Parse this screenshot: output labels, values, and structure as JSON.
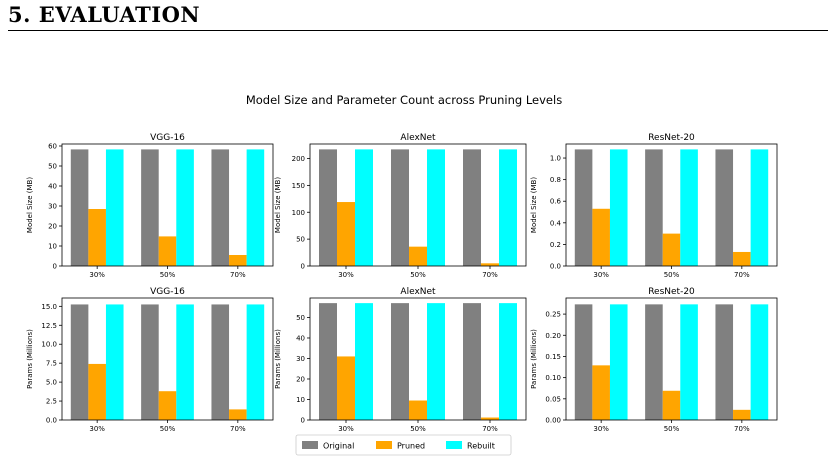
{
  "section_heading": "5. EVALUATION",
  "chart_data": {
    "suptitle": "Model Size and Parameter Count across Pruning Levels",
    "legend": {
      "placement": "bottom-center",
      "entries": [
        {
          "name": "Original",
          "color": "#808080"
        },
        {
          "name": "Pruned",
          "color": "#ffa500"
        },
        {
          "name": "Rebuilt",
          "color": "#00ffff"
        }
      ]
    },
    "panels": [
      {
        "type": "bar",
        "title": "VGG-16",
        "ylabel": "Model Size (MB)",
        "categories": [
          "30%",
          "50%",
          "70%"
        ],
        "ylim": [
          0,
          61
        ],
        "yticks": [
          0,
          10,
          20,
          30,
          40,
          50,
          60
        ],
        "ytick_labels": [
          "0",
          "10",
          "20",
          "30",
          "40",
          "50",
          "60"
        ],
        "series": [
          {
            "name": "Original",
            "values": [
              58.3,
              58.3,
              58.3
            ]
          },
          {
            "name": "Pruned",
            "values": [
              28.5,
              14.8,
              5.5
            ]
          },
          {
            "name": "Rebuilt",
            "values": [
              58.3,
              58.3,
              58.3
            ]
          }
        ]
      },
      {
        "type": "bar",
        "title": "AlexNet",
        "ylabel": "Model Size (MB)",
        "categories": [
          "30%",
          "50%",
          "70%"
        ],
        "ylim": [
          0,
          227
        ],
        "yticks": [
          0,
          50,
          100,
          150,
          200
        ],
        "ytick_labels": [
          "0",
          "50",
          "100",
          "150",
          "200"
        ],
        "series": [
          {
            "name": "Original",
            "values": [
              217,
              217,
              217
            ]
          },
          {
            "name": "Pruned",
            "values": [
              119,
              36,
              5
            ]
          },
          {
            "name": "Rebuilt",
            "values": [
              217,
              217,
              217
            ]
          }
        ]
      },
      {
        "type": "bar",
        "title": "ResNet-20",
        "ylabel": "Model Size (MB)",
        "categories": [
          "30%",
          "50%",
          "70%"
        ],
        "ylim": [
          0,
          1.13
        ],
        "yticks": [
          0,
          0.2,
          0.4,
          0.6,
          0.8,
          1.0
        ],
        "ytick_labels": [
          "0.0",
          "0.2",
          "0.4",
          "0.6",
          "0.8",
          "1.0"
        ],
        "series": [
          {
            "name": "Original",
            "values": [
              1.08,
              1.08,
              1.08
            ]
          },
          {
            "name": "Pruned",
            "values": [
              0.53,
              0.3,
              0.13
            ]
          },
          {
            "name": "Rebuilt",
            "values": [
              1.08,
              1.08,
              1.08
            ]
          }
        ]
      },
      {
        "type": "bar",
        "title": "VGG-16",
        "ylabel": "Params (Millions)",
        "categories": [
          "30%",
          "50%",
          "70%"
        ],
        "ylim": [
          0,
          16.1
        ],
        "yticks": [
          0,
          2.5,
          5.0,
          7.5,
          10.0,
          12.5,
          15.0
        ],
        "ytick_labels": [
          "0.0",
          "2.5",
          "5.0",
          "7.5",
          "10.0",
          "12.5",
          "15.0"
        ],
        "series": [
          {
            "name": "Original",
            "values": [
              15.25,
              15.25,
              15.25
            ]
          },
          {
            "name": "Pruned",
            "values": [
              7.4,
              3.8,
              1.4
            ]
          },
          {
            "name": "Rebuilt",
            "values": [
              15.25,
              15.25,
              15.25
            ]
          }
        ]
      },
      {
        "type": "bar",
        "title": "AlexNet",
        "ylabel": "Params (Millions)",
        "categories": [
          "30%",
          "50%",
          "70%"
        ],
        "ylim": [
          0,
          59.5
        ],
        "yticks": [
          0,
          10,
          20,
          30,
          40,
          50
        ],
        "ytick_labels": [
          "0",
          "10",
          "20",
          "30",
          "40",
          "50"
        ],
        "series": [
          {
            "name": "Original",
            "values": [
              57,
              57,
              57
            ]
          },
          {
            "name": "Pruned",
            "values": [
              31,
              9.5,
              1.2
            ]
          },
          {
            "name": "Rebuilt",
            "values": [
              57,
              57,
              57
            ]
          }
        ]
      },
      {
        "type": "bar",
        "title": "ResNet-20",
        "ylabel": "Params (Millions)",
        "categories": [
          "30%",
          "50%",
          "70%"
        ],
        "ylim": [
          0,
          0.288
        ],
        "yticks": [
          0,
          0.05,
          0.1,
          0.15,
          0.2,
          0.25
        ],
        "ytick_labels": [
          "0.00",
          "0.05",
          "0.10",
          "0.15",
          "0.20",
          "0.25"
        ],
        "series": [
          {
            "name": "Original",
            "values": [
              0.273,
              0.273,
              0.273
            ]
          },
          {
            "name": "Pruned",
            "values": [
              0.129,
              0.069,
              0.024
            ]
          },
          {
            "name": "Rebuilt",
            "values": [
              0.273,
              0.273,
              0.273
            ]
          }
        ]
      }
    ]
  }
}
